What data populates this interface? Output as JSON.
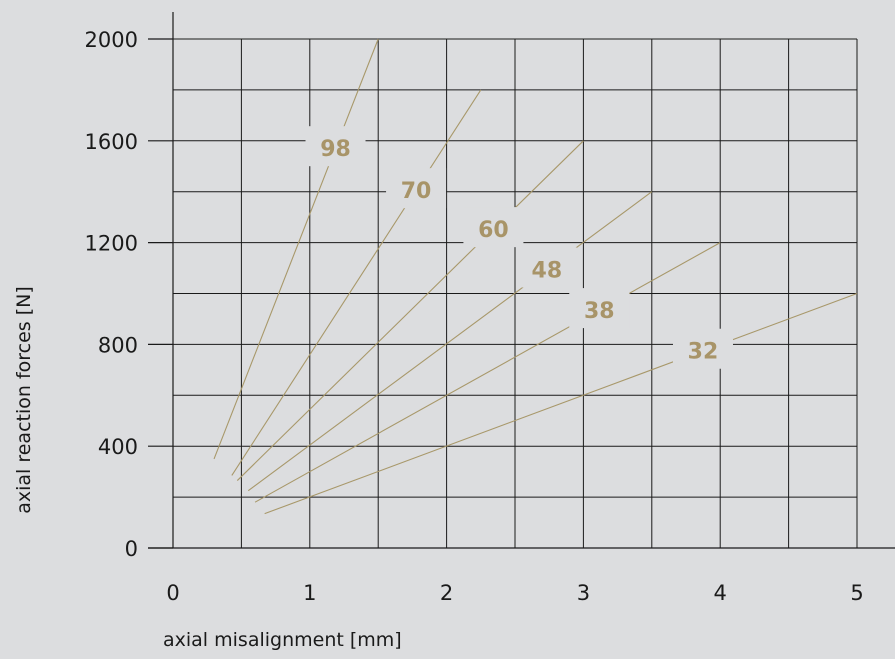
{
  "chart_data": {
    "type": "line",
    "xlabel": "axial misalignment  [mm]",
    "ylabel": "axial reaction forces [N]",
    "xlim": [
      0,
      5
    ],
    "ylim": [
      0,
      2000
    ],
    "x_ticks": [
      "0",
      "1",
      "2",
      "3",
      "4",
      "5"
    ],
    "y_ticks": [
      "0",
      "400",
      "800",
      "1200",
      "1600",
      "2000"
    ],
    "grid": true,
    "series": [
      {
        "name": "98",
        "x": [
          0.3,
          1.5
        ],
        "y": [
          350,
          2000
        ]
      },
      {
        "name": "70",
        "x": [
          0.43,
          2.25
        ],
        "y": [
          285,
          1800
        ]
      },
      {
        "name": "60",
        "x": [
          0.47,
          3.0
        ],
        "y": [
          265,
          1600
        ]
      },
      {
        "name": "48",
        "x": [
          0.55,
          3.5
        ],
        "y": [
          225,
          1400
        ]
      },
      {
        "name": "38",
        "x": [
          0.6,
          4.0
        ],
        "y": [
          180,
          1200
        ]
      },
      {
        "name": "32",
        "x": [
          0.67,
          5.0
        ],
        "y": [
          135,
          1000
        ]
      }
    ]
  },
  "colors": {
    "background": "#dcdddf",
    "grid": "#1a1a1a",
    "series_line": "#a8986a",
    "series_label": "#a89468",
    "text": "#1a1a1a"
  }
}
